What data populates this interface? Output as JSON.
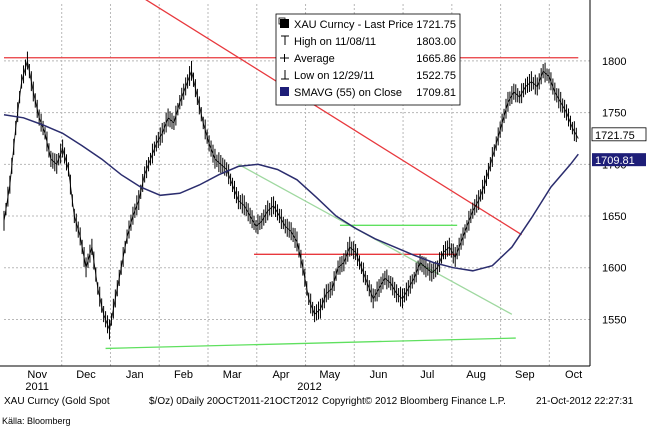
{
  "chart_data": {
    "type": "line",
    "legend": {
      "placement": "top-center",
      "rows": [
        {
          "name": "XAU Curncy - Last Price",
          "value": "1721.75",
          "icon": "black-square-icon"
        },
        {
          "name": "High on 11/08/11",
          "value": "1803.00",
          "icon": "high-marker-icon"
        },
        {
          "name": "Average",
          "value": "1665.86",
          "icon": "average-marker-icon"
        },
        {
          "name": "Low on 12/29/11",
          "value": "1522.75",
          "icon": "low-marker-icon"
        },
        {
          "name": "SMAVG (55) on Close",
          "value": "1709.81",
          "icon": "navy-square-icon"
        }
      ]
    },
    "y_ticks": [
      "1800",
      "1750",
      "1700",
      "1650",
      "1600",
      "1550"
    ],
    "y_range": [
      1505,
      1855
    ],
    "x_months": [
      "Nov",
      "Dec",
      "Jan",
      "Feb",
      "Mar",
      "Apr",
      "May",
      "Jun",
      "Jul",
      "Aug",
      "Sep",
      "Oct"
    ],
    "x_years": [
      "2011",
      "2012"
    ],
    "last_price_label": "1721.75",
    "smavg_label": "1709.81",
    "price_series": [
      [
        0,
        1645
      ],
      [
        3,
        1680
      ],
      [
        6,
        1735
      ],
      [
        9,
        1780
      ],
      [
        12,
        1800
      ],
      [
        15,
        1770
      ],
      [
        18,
        1745
      ],
      [
        21,
        1730
      ],
      [
        24,
        1705
      ],
      [
        27,
        1700
      ],
      [
        30,
        1715
      ],
      [
        33,
        1695
      ],
      [
        36,
        1650
      ],
      [
        39,
        1630
      ],
      [
        42,
        1600
      ],
      [
        45,
        1620
      ],
      [
        48,
        1580
      ],
      [
        51,
        1555
      ],
      [
        54,
        1540
      ],
      [
        57,
        1570
      ],
      [
        60,
        1600
      ],
      [
        63,
        1630
      ],
      [
        66,
        1650
      ],
      [
        69,
        1665
      ],
      [
        72,
        1690
      ],
      [
        75,
        1705
      ],
      [
        78,
        1720
      ],
      [
        81,
        1730
      ],
      [
        84,
        1745
      ],
      [
        87,
        1740
      ],
      [
        90,
        1760
      ],
      [
        93,
        1775
      ],
      [
        96,
        1790
      ],
      [
        99,
        1765
      ],
      [
        102,
        1740
      ],
      [
        105,
        1720
      ],
      [
        108,
        1705
      ],
      [
        111,
        1700
      ],
      [
        114,
        1695
      ],
      [
        117,
        1680
      ],
      [
        120,
        1665
      ],
      [
        123,
        1660
      ],
      [
        126,
        1650
      ],
      [
        129,
        1640
      ],
      [
        132,
        1645
      ],
      [
        135,
        1655
      ],
      [
        138,
        1660
      ],
      [
        141,
        1650
      ],
      [
        144,
        1640
      ],
      [
        147,
        1635
      ],
      [
        150,
        1625
      ],
      [
        153,
        1600
      ],
      [
        156,
        1570
      ],
      [
        159,
        1555
      ],
      [
        162,
        1560
      ],
      [
        165,
        1575
      ],
      [
        168,
        1580
      ],
      [
        171,
        1600
      ],
      [
        174,
        1605
      ],
      [
        177,
        1620
      ],
      [
        180,
        1615
      ],
      [
        183,
        1600
      ],
      [
        186,
        1585
      ],
      [
        189,
        1570
      ],
      [
        192,
        1580
      ],
      [
        195,
        1590
      ],
      [
        198,
        1585
      ],
      [
        201,
        1575
      ],
      [
        204,
        1570
      ],
      [
        207,
        1580
      ],
      [
        210,
        1590
      ],
      [
        213,
        1605
      ],
      [
        216,
        1600
      ],
      [
        219,
        1595
      ],
      [
        222,
        1600
      ],
      [
        225,
        1615
      ],
      [
        228,
        1620
      ],
      [
        231,
        1610
      ],
      [
        234,
        1625
      ],
      [
        237,
        1640
      ],
      [
        240,
        1655
      ],
      [
        243,
        1665
      ],
      [
        246,
        1680
      ],
      [
        249,
        1700
      ],
      [
        252,
        1720
      ],
      [
        255,
        1740
      ],
      [
        258,
        1760
      ],
      [
        261,
        1770
      ],
      [
        264,
        1765
      ],
      [
        267,
        1775
      ],
      [
        270,
        1780
      ],
      [
        273,
        1775
      ],
      [
        276,
        1790
      ],
      [
        279,
        1785
      ],
      [
        282,
        1770
      ],
      [
        285,
        1760
      ],
      [
        288,
        1750
      ],
      [
        291,
        1735
      ],
      [
        294,
        1725
      ]
    ],
    "smavg_series": [
      [
        0,
        1748
      ],
      [
        10,
        1745
      ],
      [
        20,
        1738
      ],
      [
        30,
        1730
      ],
      [
        40,
        1718
      ],
      [
        50,
        1705
      ],
      [
        60,
        1690
      ],
      [
        70,
        1678
      ],
      [
        80,
        1670
      ],
      [
        90,
        1672
      ],
      [
        100,
        1680
      ],
      [
        110,
        1690
      ],
      [
        120,
        1698
      ],
      [
        130,
        1700
      ],
      [
        140,
        1695
      ],
      [
        150,
        1685
      ],
      [
        160,
        1668
      ],
      [
        170,
        1650
      ],
      [
        180,
        1638
      ],
      [
        190,
        1628
      ],
      [
        200,
        1620
      ],
      [
        210,
        1612
      ],
      [
        220,
        1605
      ],
      [
        230,
        1600
      ],
      [
        240,
        1597
      ],
      [
        250,
        1602
      ],
      [
        260,
        1620
      ],
      [
        270,
        1648
      ],
      [
        280,
        1678
      ],
      [
        290,
        1700
      ],
      [
        294,
        1709.81
      ]
    ],
    "trendlines": [
      {
        "color": "#e8383d",
        "points": [
          [
            0,
            1803
          ],
          [
            294,
            1803
          ]
        ]
      },
      {
        "color": "#e8383d",
        "points": [
          [
            55,
            1880
          ],
          [
            265,
            1632
          ]
        ]
      },
      {
        "color": "#e8383d",
        "points": [
          [
            128,
            1613
          ],
          [
            232,
            1613
          ]
        ]
      },
      {
        "color": "#9fd8a0",
        "points": [
          [
            120,
            1700
          ],
          [
            260,
            1555
          ]
        ]
      },
      {
        "color": "#5fe05f",
        "points": [
          [
            172,
            1641
          ],
          [
            232,
            1641
          ]
        ]
      },
      {
        "color": "#5fe05f",
        "points": [
          [
            52,
            1522
          ],
          [
            262,
            1532
          ]
        ]
      }
    ]
  },
  "footer": {
    "ticker": "XAU Curncy (Gold Spot",
    "unit": "$/Oz) 0Daily 20OCT2011-21OCT2012",
    "copyright": "Copyright© 2012 Bloomberg Finance L.P.",
    "timestamp": "21-Oct-2012 22:27:31"
  },
  "source": "Källa: Bloomberg",
  "colors": {
    "price": "#000000",
    "smavg": "#2b2d6e",
    "grid": "#b8b8b8",
    "legend_bg": "#ffffff",
    "smavg_tag": "#1e1e78"
  }
}
